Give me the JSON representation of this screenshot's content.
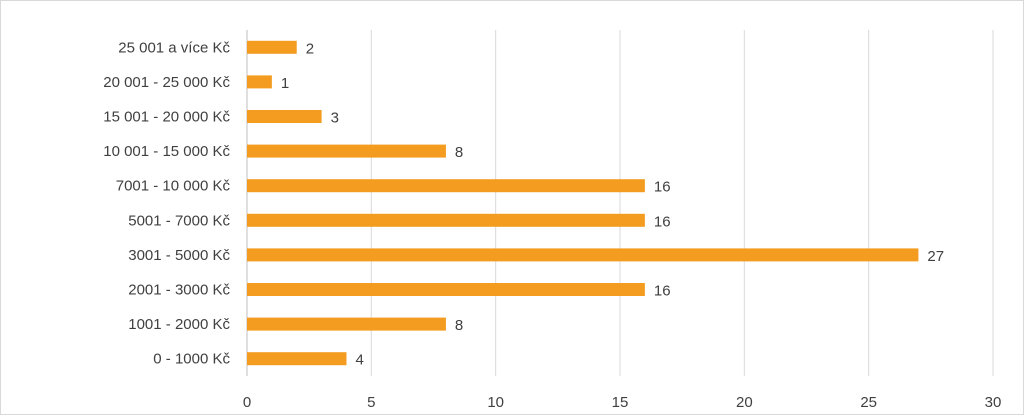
{
  "chart_data": {
    "type": "bar",
    "orientation": "horizontal",
    "categories": [
      "0 - 1000 Kč",
      "1001 - 2000 Kč",
      "2001 - 3000 Kč",
      "3001 - 5000 Kč",
      "5001 - 7000 Kč",
      "7001 - 10 000 Kč",
      "10 001 - 15 000 Kč",
      "15 001 - 20 000 Kč",
      "20 001 - 25 000 Kč",
      "25 001 a více Kč"
    ],
    "values": [
      4,
      8,
      16,
      27,
      16,
      16,
      8,
      3,
      1,
      2
    ],
    "xlim": [
      0,
      30
    ],
    "xticks": [
      0,
      5,
      10,
      15,
      20,
      25,
      30
    ],
    "grid": "vertical",
    "legend": "none",
    "bar_color": "#f39c1f",
    "title": "",
    "xlabel": "",
    "ylabel": ""
  }
}
